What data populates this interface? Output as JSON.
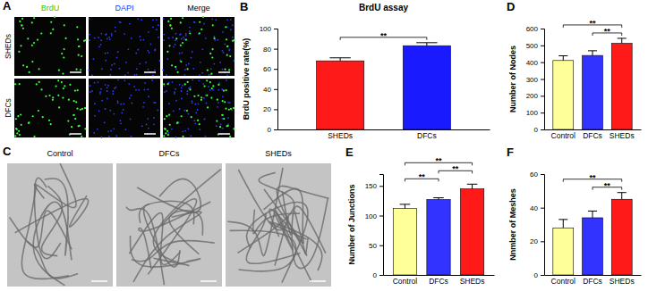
{
  "chart_data": [
    {
      "panel": "B",
      "type": "bar",
      "title": "BrdU assay",
      "y_label": "BrdU positive rate(%)",
      "categories": [
        "SHEDs",
        "DFCs"
      ],
      "values": [
        68,
        83
      ],
      "errors": [
        3,
        3
      ],
      "colors": [
        "#ff1a1a",
        "#1a1aff"
      ],
      "ylim": [
        0,
        100
      ],
      "yticks": [
        0,
        20,
        40,
        60,
        80,
        100
      ],
      "annotations": [
        {
          "pair": [
            0,
            1
          ],
          "text": "**"
        }
      ]
    },
    {
      "panel": "D",
      "type": "bar",
      "y_label": "Number of Nodes",
      "categories": [
        "Control",
        "DFCs",
        "SHEDs"
      ],
      "values": [
        410,
        440,
        512
      ],
      "errors": [
        28,
        28,
        30
      ],
      "colors": [
        "#ffff99",
        "#3333ff",
        "#ff1a1a"
      ],
      "ylim": [
        0,
        600
      ],
      "yticks": [
        0,
        100,
        200,
        300,
        400,
        500,
        600
      ],
      "annotations": [
        {
          "pair": [
            1,
            2
          ],
          "text": "**"
        },
        {
          "pair": [
            0,
            2
          ],
          "text": "**"
        }
      ]
    },
    {
      "panel": "E",
      "type": "bar",
      "y_label": "Number of Junctions",
      "categories": [
        "Control",
        "DFCs",
        "SHEDs"
      ],
      "values": [
        112,
        127,
        145
      ],
      "errors": [
        7,
        3,
        8
      ],
      "colors": [
        "#ffff99",
        "#3333ff",
        "#ff1a1a"
      ],
      "ylim": [
        0,
        170
      ],
      "yticks": [
        0,
        50,
        100,
        150
      ],
      "annotations": [
        {
          "pair": [
            0,
            1
          ],
          "text": "**"
        },
        {
          "pair": [
            1,
            2
          ],
          "text": "**"
        },
        {
          "pair": [
            0,
            2
          ],
          "text": "**"
        }
      ]
    },
    {
      "panel": "F",
      "type": "bar",
      "y_label": "Nnmber of Meshes",
      "categories": [
        "Control",
        "DFCs",
        "SHEDs"
      ],
      "values": [
        28,
        34,
        45
      ],
      "errors": [
        5,
        4,
        4
      ],
      "colors": [
        "#ffff99",
        "#3333ff",
        "#ff1a1a"
      ],
      "ylim": [
        0,
        60
      ],
      "yticks": [
        0,
        20,
        40,
        60
      ],
      "annotations": [
        {
          "pair": [
            1,
            2
          ],
          "text": "**"
        },
        {
          "pair": [
            0,
            2
          ],
          "text": "**"
        }
      ]
    }
  ],
  "images": [
    {
      "panel": "A",
      "columns": [
        "BrdU",
        "DAPI",
        "Merge"
      ],
      "column_colors": [
        "#22cc22",
        "#2233ff",
        "#000000"
      ],
      "rows": [
        "SHEDs",
        "DFCs"
      ]
    },
    {
      "panel": "C",
      "columns": [
        "Control",
        "DFCs",
        "SHEDs"
      ]
    }
  ]
}
